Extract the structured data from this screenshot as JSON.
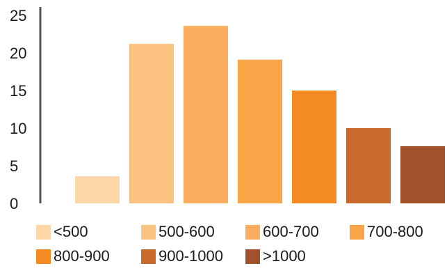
{
  "chart_data": {
    "type": "bar",
    "categories": [
      "<500",
      "500-600",
      "600-700",
      "700-800",
      "800-900",
      "900-1000",
      ">1000"
    ],
    "values": [
      3.6,
      21.2,
      23.6,
      19.1,
      15.0,
      10.0,
      7.6
    ],
    "colors": [
      "#FDD6A8",
      "#FCC282",
      "#F9AF5F",
      "#F7A547",
      "#F48A22",
      "#C9692B",
      "#A2522A"
    ],
    "ylim": [
      0,
      25
    ],
    "yticks": [
      0,
      5,
      10,
      15,
      20,
      25
    ],
    "grid": false,
    "legend_position": "bottom",
    "title": "",
    "xlabel": "",
    "ylabel": ""
  }
}
